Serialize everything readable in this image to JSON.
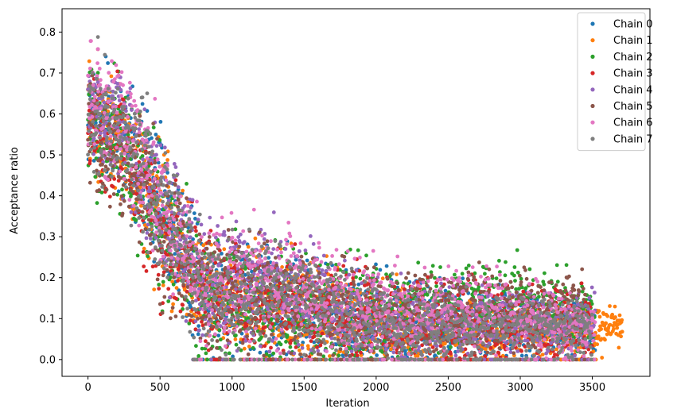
{
  "chart_data": {
    "type": "scatter",
    "title": "",
    "xlabel": "Iteration",
    "ylabel": "Acceptance ratio",
    "xlim": [
      -180,
      3900
    ],
    "ylim": [
      -0.041,
      0.857
    ],
    "xticks": [
      0,
      500,
      1000,
      1500,
      2000,
      2500,
      3000,
      3500
    ],
    "yticks": [
      0.0,
      0.1,
      0.2,
      0.3,
      0.4,
      0.5,
      0.6,
      0.7,
      0.8
    ],
    "xtick_labels": [
      "0",
      "500",
      "1000",
      "1500",
      "2000",
      "2500",
      "3000",
      "3500"
    ],
    "ytick_labels": [
      "0.0",
      "0.1",
      "0.2",
      "0.3",
      "0.4",
      "0.5",
      "0.6",
      "0.7",
      "0.8"
    ],
    "grid": false,
    "legend_position": "top-right",
    "series": [
      {
        "name": "Chain 0",
        "color": "#1f77b4",
        "end_iteration": 3520,
        "profile": [
          [
            0,
            0.6
          ],
          [
            250,
            0.55
          ],
          [
            500,
            0.38
          ],
          [
            800,
            0.18
          ],
          [
            1200,
            0.15
          ],
          [
            1600,
            0.12
          ],
          [
            2000,
            0.09
          ],
          [
            2600,
            0.08
          ],
          [
            3000,
            0.08
          ],
          [
            3520,
            0.08
          ]
        ],
        "spread": [
          [
            0,
            0.1
          ],
          [
            500,
            0.12
          ],
          [
            900,
            0.1
          ],
          [
            1600,
            0.09
          ],
          [
            2500,
            0.07
          ],
          [
            3520,
            0.06
          ]
        ]
      },
      {
        "name": "Chain 1",
        "color": "#ff7f0e",
        "end_iteration": 3710,
        "profile": [
          [
            0,
            0.6
          ],
          [
            250,
            0.52
          ],
          [
            500,
            0.35
          ],
          [
            800,
            0.17
          ],
          [
            1200,
            0.14
          ],
          [
            1600,
            0.11
          ],
          [
            2000,
            0.09
          ],
          [
            2600,
            0.06
          ],
          [
            3000,
            0.06
          ],
          [
            3520,
            0.07
          ],
          [
            3710,
            0.09
          ]
        ],
        "spread": [
          [
            0,
            0.1
          ],
          [
            500,
            0.12
          ],
          [
            900,
            0.1
          ],
          [
            1600,
            0.09
          ],
          [
            2500,
            0.06
          ],
          [
            3710,
            0.04
          ]
        ]
      },
      {
        "name": "Chain 2",
        "color": "#2ca02c",
        "end_iteration": 3520,
        "profile": [
          [
            0,
            0.58
          ],
          [
            250,
            0.5
          ],
          [
            500,
            0.35
          ],
          [
            800,
            0.17
          ],
          [
            1200,
            0.14
          ],
          [
            1600,
            0.12
          ],
          [
            2000,
            0.11
          ],
          [
            2600,
            0.13
          ],
          [
            3000,
            0.14
          ],
          [
            3520,
            0.1
          ]
        ],
        "spread": [
          [
            0,
            0.1
          ],
          [
            500,
            0.12
          ],
          [
            900,
            0.1
          ],
          [
            1600,
            0.09
          ],
          [
            2500,
            0.07
          ],
          [
            3520,
            0.06
          ]
        ]
      },
      {
        "name": "Chain 3",
        "color": "#d62728",
        "end_iteration": 3500,
        "profile": [
          [
            0,
            0.6
          ],
          [
            250,
            0.52
          ],
          [
            500,
            0.33
          ],
          [
            800,
            0.16
          ],
          [
            1200,
            0.13
          ],
          [
            1600,
            0.11
          ],
          [
            2000,
            0.09
          ],
          [
            2600,
            0.08
          ],
          [
            3000,
            0.08
          ],
          [
            3500,
            0.08
          ]
        ],
        "spread": [
          [
            0,
            0.1
          ],
          [
            500,
            0.12
          ],
          [
            900,
            0.1
          ],
          [
            1600,
            0.09
          ],
          [
            2500,
            0.07
          ],
          [
            3500,
            0.06
          ]
        ]
      },
      {
        "name": "Chain 4",
        "color": "#9467bd",
        "end_iteration": 3520,
        "profile": [
          [
            0,
            0.62
          ],
          [
            250,
            0.56
          ],
          [
            500,
            0.38
          ],
          [
            800,
            0.19
          ],
          [
            1200,
            0.18
          ],
          [
            1600,
            0.14
          ],
          [
            2000,
            0.1
          ],
          [
            2600,
            0.09
          ],
          [
            3000,
            0.09
          ],
          [
            3520,
            0.09
          ]
        ],
        "spread": [
          [
            0,
            0.1
          ],
          [
            500,
            0.12
          ],
          [
            900,
            0.1
          ],
          [
            1600,
            0.09
          ],
          [
            2500,
            0.06
          ],
          [
            3520,
            0.05
          ]
        ]
      },
      {
        "name": "Chain 5",
        "color": "#8c564b",
        "end_iteration": 3450,
        "profile": [
          [
            0,
            0.55
          ],
          [
            250,
            0.5
          ],
          [
            500,
            0.34
          ],
          [
            800,
            0.17
          ],
          [
            1200,
            0.15
          ],
          [
            1600,
            0.13
          ],
          [
            2000,
            0.1
          ],
          [
            2600,
            0.11
          ],
          [
            3000,
            0.12
          ],
          [
            3450,
            0.12
          ]
        ],
        "spread": [
          [
            0,
            0.1
          ],
          [
            500,
            0.12
          ],
          [
            900,
            0.1
          ],
          [
            1600,
            0.09
          ],
          [
            2500,
            0.07
          ],
          [
            3450,
            0.06
          ]
        ]
      },
      {
        "name": "Chain 6",
        "color": "#e377c2",
        "end_iteration": 3520,
        "profile": [
          [
            0,
            0.62
          ],
          [
            250,
            0.58
          ],
          [
            500,
            0.38
          ],
          [
            800,
            0.18
          ],
          [
            1200,
            0.19
          ],
          [
            1600,
            0.15
          ],
          [
            2000,
            0.11
          ],
          [
            2600,
            0.11
          ],
          [
            3000,
            0.1
          ],
          [
            3520,
            0.08
          ]
        ],
        "spread": [
          [
            0,
            0.1
          ],
          [
            500,
            0.12
          ],
          [
            900,
            0.1
          ],
          [
            1600,
            0.09
          ],
          [
            2500,
            0.07
          ],
          [
            3520,
            0.05
          ]
        ]
      },
      {
        "name": "Chain 7",
        "color": "#7f7f7f",
        "end_iteration": 3500,
        "profile": [
          [
            0,
            0.62
          ],
          [
            250,
            0.55
          ],
          [
            500,
            0.38
          ],
          [
            800,
            0.17
          ],
          [
            1200,
            0.16
          ],
          [
            1600,
            0.12
          ],
          [
            2000,
            0.08
          ],
          [
            2600,
            0.07
          ],
          [
            3000,
            0.08
          ],
          [
            3500,
            0.08
          ]
        ],
        "spread": [
          [
            0,
            0.1
          ],
          [
            500,
            0.12
          ],
          [
            900,
            0.1
          ],
          [
            1600,
            0.09
          ],
          [
            2500,
            0.06
          ],
          [
            3500,
            0.05
          ]
        ]
      }
    ]
  }
}
